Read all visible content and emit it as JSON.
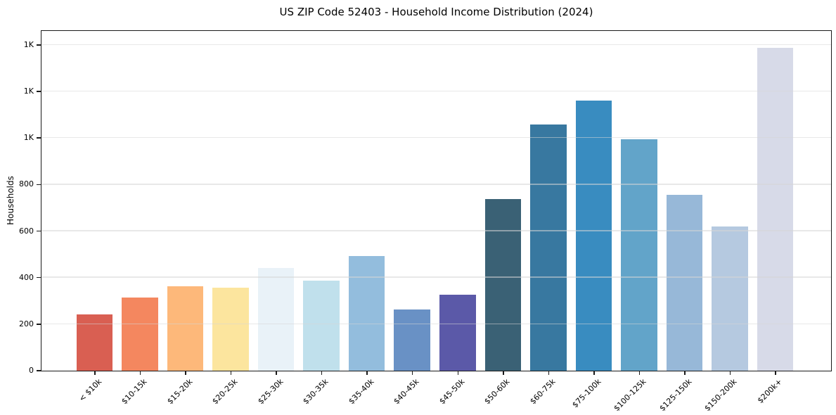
{
  "window": {
    "background": "#ffffff",
    "axis_frame_color": "#1a1a1a",
    "grid_color": "#d5d5d5"
  },
  "chart_data": {
    "type": "bar",
    "title": "US ZIP Code 52403 - Household Income Distribution (2024)",
    "xlabel": "",
    "ylabel": "Households",
    "legend": "none",
    "grid": "horizontal",
    "ylim": [
      0,
      1460
    ],
    "categories": [
      "< $10k",
      "$10-15k",
      "$15-20k",
      "$20-25k",
      "$25-30k",
      "$30-35k",
      "$35-40k",
      "$40-45k",
      "$45-50k",
      "$50-60k",
      "$60-75k",
      "$75-100k",
      "$100-125k",
      "$125-150k",
      "$150-200k",
      "$200k+"
    ],
    "values": [
      240,
      312,
      362,
      356,
      441,
      384,
      490,
      262,
      324,
      737,
      1057,
      1160,
      994,
      754,
      617,
      1386
    ],
    "bar_colors": [
      "#d95f52",
      "#f4875f",
      "#fdb87a",
      "#fce59e",
      "#e9f2f8",
      "#c0e0ec",
      "#93bddd",
      "#6991c5",
      "#5b59a8",
      "#3a6175",
      "#3878a0",
      "#398cc0",
      "#62a4c9",
      "#97b8d8",
      "#b5c9e0",
      "#d7dae8"
    ],
    "yticks": [
      {
        "value": 0,
        "label": "0"
      },
      {
        "value": 200,
        "label": "200"
      },
      {
        "value": 400,
        "label": "400"
      },
      {
        "value": 600,
        "label": "600"
      },
      {
        "value": 800,
        "label": "800"
      },
      {
        "value": 1000,
        "label": "1K"
      },
      {
        "value": 1200,
        "label": "1K"
      },
      {
        "value": 1400,
        "label": "1K"
      }
    ]
  }
}
